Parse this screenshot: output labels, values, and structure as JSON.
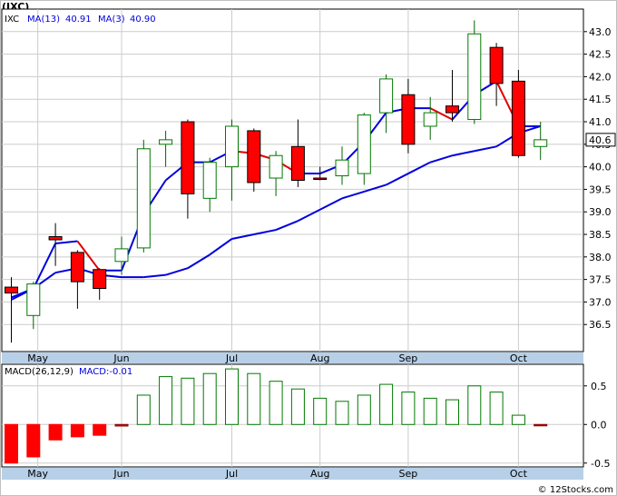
{
  "title": "(IXC)",
  "price_legend": {
    "symbol": "IXC",
    "ma13_label": "MA(13)",
    "ma13_value": "40.91",
    "ma3_label": "MA(3)",
    "ma3_value": "40.90"
  },
  "macd_legend": {
    "label": "MACD(26,12,9)",
    "value_label": "MACD:-0.01"
  },
  "last_price_tag": "40.6",
  "watermark": "© 12Stocks.com",
  "colors": {
    "up": "#007a00",
    "down": "#ff0000",
    "ma13": "#0000dd",
    "ma3_up": "#0000dd",
    "ma3_down": "#dd0000",
    "axis_band": "#b7d0e8"
  },
  "chart_data": [
    {
      "type": "candlestick",
      "title": "(IXC)",
      "period": "weekly",
      "x_tick_labels": [
        "May",
        "Jun",
        "Jul",
        "Aug",
        "Sep",
        "Oct"
      ],
      "y_ticks": [
        36.5,
        37.0,
        37.5,
        38.0,
        38.5,
        39.0,
        39.5,
        40.0,
        40.5,
        41.0,
        41.5,
        42.0,
        42.5,
        43.0
      ],
      "ylim": [
        35.9,
        43.5
      ],
      "candles": [
        {
          "o": 37.33,
          "h": 37.55,
          "l": 36.1,
          "c": 37.2
        },
        {
          "o": 36.7,
          "h": 37.45,
          "l": 36.4,
          "c": 37.4
        },
        {
          "o": 38.45,
          "h": 38.75,
          "l": 37.8,
          "c": 38.38
        },
        {
          "o": 38.1,
          "h": 38.15,
          "l": 36.85,
          "c": 37.45
        },
        {
          "o": 37.72,
          "h": 37.75,
          "l": 37.05,
          "c": 37.3
        },
        {
          "o": 37.9,
          "h": 38.45,
          "l": 37.6,
          "c": 38.18
        },
        {
          "o": 38.2,
          "h": 40.6,
          "l": 38.1,
          "c": 40.4
        },
        {
          "o": 40.5,
          "h": 40.8,
          "l": 40.0,
          "c": 40.6
        },
        {
          "o": 41.0,
          "h": 41.05,
          "l": 38.85,
          "c": 39.4
        },
        {
          "o": 39.3,
          "h": 40.2,
          "l": 39.0,
          "c": 40.1
        },
        {
          "o": 40.0,
          "h": 41.05,
          "l": 39.25,
          "c": 40.9
        },
        {
          "o": 40.8,
          "h": 40.85,
          "l": 39.45,
          "c": 39.65
        },
        {
          "o": 39.75,
          "h": 40.35,
          "l": 39.35,
          "c": 40.25
        },
        {
          "o": 40.45,
          "h": 41.05,
          "l": 39.55,
          "c": 39.7
        },
        {
          "o": 39.75,
          "h": 40.0,
          "l": 39.7,
          "c": 39.72
        },
        {
          "o": 39.8,
          "h": 40.45,
          "l": 39.6,
          "c": 40.15
        },
        {
          "o": 39.85,
          "h": 41.2,
          "l": 39.6,
          "c": 41.15
        },
        {
          "o": 41.2,
          "h": 42.05,
          "l": 40.75,
          "c": 41.95
        },
        {
          "o": 41.6,
          "h": 41.95,
          "l": 40.3,
          "c": 40.5
        },
        {
          "o": 40.9,
          "h": 41.55,
          "l": 40.6,
          "c": 41.2
        },
        {
          "o": 41.35,
          "h": 42.15,
          "l": 41.0,
          "c": 41.2
        },
        {
          "o": 41.05,
          "h": 43.25,
          "l": 40.95,
          "c": 42.95
        },
        {
          "o": 42.65,
          "h": 42.75,
          "l": 41.35,
          "c": 41.85
        },
        {
          "o": 41.9,
          "h": 42.15,
          "l": 40.2,
          "c": 40.25
        },
        {
          "o": 40.45,
          "h": 41.0,
          "l": 40.15,
          "c": 40.6
        }
      ],
      "series": [
        {
          "name": "MA(13)",
          "color": "#0000dd",
          "values": [
            37.05,
            37.3,
            37.65,
            37.75,
            37.6,
            37.55,
            37.55,
            37.6,
            37.75,
            38.05,
            38.4,
            38.5,
            38.6,
            38.8,
            39.05,
            39.3,
            39.45,
            39.6,
            39.85,
            40.1,
            40.25,
            40.35,
            40.45,
            40.75,
            40.9
          ]
        },
        {
          "name": "MA(3)",
          "color": "#dd0000",
          "values": [
            37.1,
            37.3,
            38.3,
            38.35,
            37.7,
            37.7,
            38.95,
            39.7,
            40.1,
            40.1,
            40.35,
            40.3,
            40.15,
            39.85,
            39.85,
            40.05,
            40.55,
            41.2,
            41.3,
            41.3,
            41.05,
            41.6,
            41.9,
            40.9,
            40.9
          ]
        }
      ]
    },
    {
      "type": "bar",
      "title": "MACD(26,12,9)",
      "x_tick_labels": [
        "May",
        "Jun",
        "Jul",
        "Aug",
        "Sep",
        "Oct"
      ],
      "y_ticks": [
        -0.5,
        0.0,
        0.5
      ],
      "ylim": [
        -0.55,
        0.78
      ],
      "values": [
        -0.5,
        -0.42,
        -0.2,
        -0.16,
        -0.14,
        -0.02,
        0.38,
        0.62,
        0.6,
        0.66,
        0.72,
        0.66,
        0.56,
        0.46,
        0.34,
        0.3,
        0.38,
        0.52,
        0.42,
        0.34,
        0.32,
        0.5,
        0.42,
        0.12,
        -0.01
      ]
    }
  ]
}
